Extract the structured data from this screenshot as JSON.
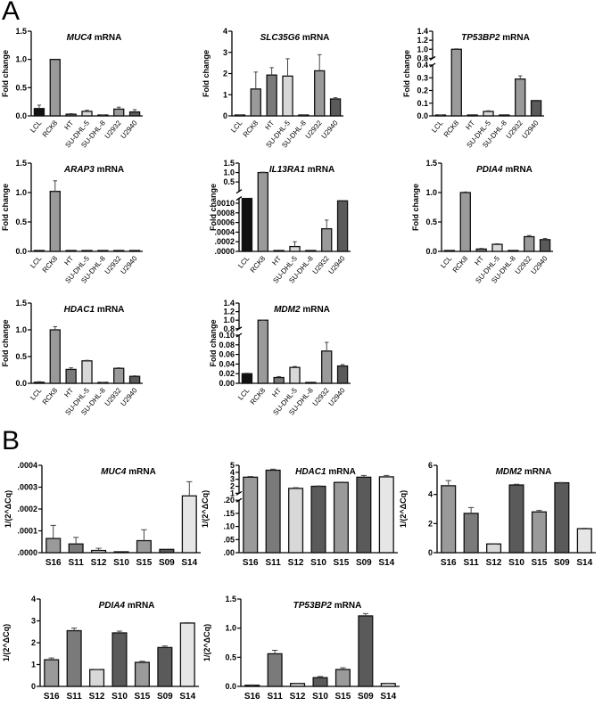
{
  "panels": [
    {
      "label": "A"
    },
    {
      "label": "B"
    }
  ],
  "chart_data": [
    {
      "type": "bar",
      "panel": "A",
      "title_gene": "MUC4",
      "title_suffix": " mRNA",
      "ylabel": "Fold change",
      "categories": [
        "LCL",
        "RCK8",
        "HT",
        "SU-DHL-5",
        "SU-DHL-8",
        "U2932",
        "U2940"
      ],
      "values": [
        0.13,
        1.0,
        0.03,
        0.08,
        0.01,
        0.12,
        0.07
      ],
      "errors": [
        0.06,
        0.0,
        0.01,
        0.02,
        0.005,
        0.035,
        0.04
      ],
      "colors": [
        "#111111",
        "#9a9a9a",
        "#7a7a7a",
        "#d8d8d8",
        "#5a5a5a",
        "#9a9a9a",
        "#5a5a5a"
      ],
      "y_segments": [
        {
          "min": 0,
          "max": 1.5,
          "ticks": [
            {
              "v": 0,
              "t": "0.0"
            },
            {
              "v": 0.5,
              "t": "0.5"
            },
            {
              "v": 1,
              "t": "1.0"
            },
            {
              "v": 1.5,
              "t": "1.5"
            }
          ]
        }
      ]
    },
    {
      "type": "bar",
      "panel": "A",
      "title_gene": "SLC35G6",
      "title_suffix": " mRNA",
      "ylabel": "Fold change",
      "categories": [
        "LCL",
        "RCK8",
        "HT",
        "SU-DHL-5",
        "SU-DHL-8",
        "U2932",
        "U2940"
      ],
      "values": [
        0.03,
        1.27,
        1.93,
        1.88,
        0.03,
        2.13,
        0.8
      ],
      "errors": [
        0.02,
        0.8,
        0.35,
        0.82,
        0.02,
        0.76,
        0.06
      ],
      "colors": [
        "#111111",
        "#9a9a9a",
        "#7a7a7a",
        "#d8d8d8",
        "#5a5a5a",
        "#9a9a9a",
        "#5a5a5a"
      ],
      "y_segments": [
        {
          "min": 0,
          "max": 4,
          "ticks": [
            {
              "v": 0,
              "t": "0"
            },
            {
              "v": 1,
              "t": "1"
            },
            {
              "v": 2,
              "t": "2"
            },
            {
              "v": 3,
              "t": "3"
            },
            {
              "v": 4,
              "t": "4"
            }
          ]
        }
      ]
    },
    {
      "type": "bar",
      "panel": "A",
      "title_gene": "TP53BP2",
      "title_suffix": " mRNA",
      "ylabel": "Fold change",
      "categories": [
        "LCL",
        "RCK8",
        "HT",
        "SU-DHL-5",
        "SU-DHL-8",
        "U2932",
        "U2940"
      ],
      "values": [
        0.005,
        1.0,
        0.002,
        0.035,
        0.003,
        0.29,
        0.12
      ],
      "errors": [
        0.002,
        0.01,
        0.0,
        0.005,
        0.0,
        0.025,
        0.003
      ],
      "colors": [
        "#111111",
        "#9a9a9a",
        "#7a7a7a",
        "#d8d8d8",
        "#5a5a5a",
        "#9a9a9a",
        "#5a5a5a"
      ],
      "y_segments": [
        {
          "min": 0,
          "max": 0.4,
          "ticks": [
            {
              "v": 0,
              "t": "0.0"
            },
            {
              "v": 0.1,
              "t": "0.1"
            },
            {
              "v": 0.2,
              "t": "0.2"
            },
            {
              "v": 0.3,
              "t": "0.3"
            },
            {
              "v": 0.4,
              "t": "0.4"
            }
          ]
        },
        {
          "min": 0.8,
          "max": 1.4,
          "ticks": [
            {
              "v": 0.8,
              "t": "0.8"
            },
            {
              "v": 1.0,
              "t": "1.0"
            },
            {
              "v": 1.2,
              "t": "1.2"
            },
            {
              "v": 1.4,
              "t": "1.4"
            }
          ]
        }
      ]
    },
    {
      "type": "bar",
      "panel": "A",
      "title_gene": "ARAP3",
      "title_suffix": " mRNA",
      "ylabel": "Fold change",
      "categories": [
        "LCL",
        "RCK8",
        "HT",
        "SU-DHL-5",
        "SU-DHL-8",
        "U2932",
        "U2940"
      ],
      "values": [
        0.0,
        1.02,
        0.0,
        0.0,
        0.0,
        0.0,
        0.0
      ],
      "errors": [
        0,
        0.18,
        0,
        0,
        0,
        0,
        0
      ],
      "colors": [
        "#111111",
        "#9a9a9a",
        "#7a7a7a",
        "#d8d8d8",
        "#5a5a5a",
        "#9a9a9a",
        "#5a5a5a"
      ],
      "y_segments": [
        {
          "min": 0,
          "max": 1.5,
          "ticks": [
            {
              "v": 0,
              "t": "0.0"
            },
            {
              "v": 0.5,
              "t": "0.5"
            },
            {
              "v": 1,
              "t": "1.0"
            },
            {
              "v": 1.5,
              "t": "1.5"
            }
          ]
        }
      ]
    },
    {
      "type": "bar",
      "panel": "A",
      "title_gene": "IL13RA1",
      "title_suffix": " mRNA",
      "ylabel": "Fold change",
      "categories": [
        "LCL",
        "RCK8",
        "HT",
        "SU-DHL-5",
        "SU-DHL-8",
        "U2932",
        "U2940"
      ],
      "values": [
        0.0011,
        1.0,
        0.0,
        0.0001,
        0.0,
        0.00047,
        0.00105
      ],
      "errors": [
        0,
        0.02,
        0,
        0.0001,
        0,
        0.00018,
        0
      ],
      "colors": [
        "#111111",
        "#9a9a9a",
        "#7a7a7a",
        "#d8d8d8",
        "#5a5a5a",
        "#9a9a9a",
        "#5a5a5a"
      ],
      "y_segments": [
        {
          "min": 0,
          "max": 0.0011,
          "ticks": [
            {
              "v": 0,
              "t": ".0000"
            },
            {
              "v": 0.0002,
              "t": ".0002"
            },
            {
              "v": 0.0004,
              "t": ".0004"
            },
            {
              "v": 0.0006,
              "t": ".0006"
            },
            {
              "v": 0.0008,
              "t": ".0008"
            },
            {
              "v": 0.001,
              "t": ".0010"
            }
          ]
        },
        {
          "min": 0.0,
          "max": 1.5,
          "ticks": [
            {
              "v": 0.5,
              "t": "0.5"
            },
            {
              "v": 1.0,
              "t": "1.0"
            },
            {
              "v": 1.5,
              "t": "1.5"
            }
          ]
        }
      ]
    },
    {
      "type": "bar",
      "panel": "A",
      "title_gene": "PDIA4",
      "title_suffix": " mRNA",
      "ylabel": "Fold change",
      "categories": [
        "LCL",
        "RCK8",
        "HT",
        "SU-DHL-5",
        "SU-DHL-8",
        "U2932",
        "U2940"
      ],
      "values": [
        0.005,
        1.0,
        0.04,
        0.12,
        0.005,
        0.25,
        0.2
      ],
      "errors": [
        0,
        0.01,
        0.01,
        0.01,
        0,
        0.02,
        0.02
      ],
      "colors": [
        "#111111",
        "#9a9a9a",
        "#7a7a7a",
        "#d8d8d8",
        "#5a5a5a",
        "#9a9a9a",
        "#5a5a5a"
      ],
      "y_segments": [
        {
          "min": 0,
          "max": 1.5,
          "ticks": [
            {
              "v": 0,
              "t": "0.0"
            },
            {
              "v": 0.5,
              "t": "0.5"
            },
            {
              "v": 1,
              "t": "1.0"
            },
            {
              "v": 1.5,
              "t": "1.5"
            }
          ]
        }
      ]
    },
    {
      "type": "bar",
      "panel": "A",
      "title_gene": "HDAC1",
      "title_suffix": " mRNA",
      "ylabel": "Fold change",
      "categories": [
        "LCL",
        "RCK8",
        "HT",
        "SU-DHL-5",
        "SU-DHL-8",
        "U2932",
        "U2940"
      ],
      "values": [
        0.02,
        1.0,
        0.26,
        0.42,
        0.01,
        0.28,
        0.13
      ],
      "errors": [
        0.01,
        0.06,
        0.03,
        0.01,
        0.005,
        0.01,
        0.01
      ],
      "colors": [
        "#111111",
        "#9a9a9a",
        "#7a7a7a",
        "#d8d8d8",
        "#5a5a5a",
        "#9a9a9a",
        "#5a5a5a"
      ],
      "y_segments": [
        {
          "min": 0,
          "max": 1.5,
          "ticks": [
            {
              "v": 0,
              "t": "0.0"
            },
            {
              "v": 0.5,
              "t": "0.5"
            },
            {
              "v": 1,
              "t": "1.0"
            },
            {
              "v": 1.5,
              "t": "1.5"
            }
          ]
        }
      ]
    },
    {
      "type": "bar",
      "panel": "A",
      "title_gene": "MDM2",
      "title_suffix": " mRNA",
      "ylabel": "Fold change",
      "categories": [
        "LCL",
        "RCK8",
        "HT",
        "SU-DHL-5",
        "SU-DHL-8",
        "U2932",
        "U2940"
      ],
      "values": [
        0.02,
        1.0,
        0.012,
        0.033,
        0.001,
        0.067,
        0.036
      ],
      "errors": [
        0.001,
        0.005,
        0.002,
        0.002,
        0,
        0.018,
        0.003
      ],
      "colors": [
        "#111111",
        "#9a9a9a",
        "#7a7a7a",
        "#d8d8d8",
        "#5a5a5a",
        "#9a9a9a",
        "#5a5a5a"
      ],
      "y_segments": [
        {
          "min": 0,
          "max": 0.1,
          "ticks": [
            {
              "v": 0,
              "t": "0.00"
            },
            {
              "v": 0.02,
              "t": "0.02"
            },
            {
              "v": 0.04,
              "t": "0.04"
            },
            {
              "v": 0.06,
              "t": "0.06"
            },
            {
              "v": 0.08,
              "t": "0.08"
            },
            {
              "v": 0.1,
              "t": "0.10"
            }
          ]
        },
        {
          "min": 0.8,
          "max": 1.4,
          "ticks": [
            {
              "v": 0.8,
              "t": "0.8"
            },
            {
              "v": 1.0,
              "t": "1.0"
            },
            {
              "v": 1.2,
              "t": "1.2"
            },
            {
              "v": 1.4,
              "t": "1.4"
            }
          ]
        }
      ]
    },
    {
      "type": "bar",
      "panel": "B",
      "title_gene": "MUC4",
      "title_suffix": " mRNA",
      "ylabel": "1/(2^ΔCq)",
      "categories": [
        "S16",
        "S11",
        "S12",
        "S10",
        "S15",
        "S09",
        "S14"
      ],
      "values": [
        6.5e-05,
        4e-05,
        1e-05,
        3e-06,
        5.5e-05,
        1.5e-05,
        0.00026
      ],
      "errors": [
        6e-05,
        3e-05,
        1e-05,
        0,
        5e-05,
        0,
        6.5e-05
      ],
      "colors": [
        "#9a9a9a",
        "#7a7a7a",
        "#d8d8d8",
        "#5a5a5a",
        "#9a9a9a",
        "#5a5a5a",
        "#e6e6e6"
      ],
      "y_segments": [
        {
          "min": 0,
          "max": 0.0004,
          "ticks": [
            {
              "v": 0,
              "t": ".0000"
            },
            {
              "v": 0.0001,
              "t": ".0001"
            },
            {
              "v": 0.0002,
              "t": ".0002"
            },
            {
              "v": 0.0003,
              "t": ".0003"
            },
            {
              "v": 0.0004,
              "t": ".0004"
            }
          ]
        }
      ]
    },
    {
      "type": "bar",
      "panel": "B",
      "title_gene": "HDAC1",
      "title_suffix": " mRNA",
      "ylabel": "1/(2^ΔCq)",
      "categories": [
        "S16",
        "S11",
        "S12",
        "S10",
        "S15",
        "S09",
        "S14"
      ],
      "values": [
        3.3,
        4.3,
        1.7,
        2.0,
        2.55,
        3.3,
        3.35
      ],
      "errors": [
        0.1,
        0.15,
        0.1,
        0.05,
        0.05,
        0.25,
        0.2
      ],
      "colors": [
        "#9a9a9a",
        "#7a7a7a",
        "#d8d8d8",
        "#5a5a5a",
        "#9a9a9a",
        "#5a5a5a",
        "#e6e6e6"
      ],
      "y_segments": [
        {
          "min": 0,
          "max": 0.2,
          "ticks": [
            {
              "v": 0,
              "t": ".00"
            },
            {
              "v": 0.05,
              "t": ".05"
            },
            {
              "v": 0.1,
              "t": ".10"
            },
            {
              "v": 0.15,
              "t": ".15"
            },
            {
              "v": 0.2,
              "t": ".20"
            }
          ]
        },
        {
          "min": 1,
          "max": 5,
          "ticks": [
            {
              "v": 1,
              "t": "1"
            },
            {
              "v": 2,
              "t": "2"
            },
            {
              "v": 3,
              "t": "3"
            },
            {
              "v": 4,
              "t": "4"
            },
            {
              "v": 5,
              "t": "5"
            }
          ]
        }
      ]
    },
    {
      "type": "bar",
      "panel": "B",
      "title_gene": "MDM2",
      "title_suffix": " mRNA",
      "ylabel": "1/(2^ΔCq)",
      "categories": [
        "S16",
        "S11",
        "S12",
        "S10",
        "S15",
        "S09",
        "S14"
      ],
      "values": [
        4.6,
        2.7,
        0.6,
        4.65,
        2.8,
        4.8,
        1.65
      ],
      "errors": [
        0.35,
        0.4,
        0.02,
        0.05,
        0.1,
        0.02,
        0.03
      ],
      "colors": [
        "#9a9a9a",
        "#7a7a7a",
        "#d8d8d8",
        "#5a5a5a",
        "#9a9a9a",
        "#5a5a5a",
        "#e6e6e6"
      ],
      "y_segments": [
        {
          "min": 0,
          "max": 6,
          "ticks": [
            {
              "v": 0,
              "t": "0"
            },
            {
              "v": 2,
              "t": "2"
            },
            {
              "v": 4,
              "t": "4"
            },
            {
              "v": 6,
              "t": "6"
            }
          ]
        }
      ]
    },
    {
      "type": "bar",
      "panel": "B",
      "title_gene": "PDIA4",
      "title_suffix": " mRNA",
      "ylabel": "1/(2^ΔCq)",
      "categories": [
        "S16",
        "S11",
        "S12",
        "S10",
        "S15",
        "S09",
        "S14"
      ],
      "values": [
        1.22,
        2.55,
        0.77,
        2.45,
        1.1,
        1.78,
        2.9
      ],
      "errors": [
        0.08,
        0.12,
        0.01,
        0.08,
        0.05,
        0.07,
        0.02
      ],
      "colors": [
        "#9a9a9a",
        "#7a7a7a",
        "#d8d8d8",
        "#5a5a5a",
        "#9a9a9a",
        "#5a5a5a",
        "#e6e6e6"
      ],
      "y_segments": [
        {
          "min": 0,
          "max": 4,
          "ticks": [
            {
              "v": 0,
              "t": "0"
            },
            {
              "v": 1,
              "t": "1"
            },
            {
              "v": 2,
              "t": "2"
            },
            {
              "v": 3,
              "t": "3"
            },
            {
              "v": 4,
              "t": "4"
            }
          ]
        }
      ]
    },
    {
      "type": "bar",
      "panel": "B",
      "title_gene": "TP53BP2",
      "title_suffix": " mRNA",
      "ylabel": "1/(2^ΔCq)",
      "categories": [
        "S16",
        "S11",
        "S12",
        "S10",
        "S15",
        "S09",
        "S14"
      ],
      "values": [
        0.02,
        0.56,
        0.05,
        0.15,
        0.29,
        1.21,
        0.05
      ],
      "errors": [
        0.005,
        0.06,
        0.005,
        0.02,
        0.03,
        0.04,
        0.005
      ],
      "colors": [
        "#9a9a9a",
        "#7a7a7a",
        "#d8d8d8",
        "#5a5a5a",
        "#9a9a9a",
        "#5a5a5a",
        "#e6e6e6"
      ],
      "y_segments": [
        {
          "min": 0,
          "max": 1.5,
          "ticks": [
            {
              "v": 0,
              "t": "0.0"
            },
            {
              "v": 0.5,
              "t": "0.5"
            },
            {
              "v": 1,
              "t": "1.0"
            },
            {
              "v": 1.5,
              "t": "1.5"
            }
          ]
        }
      ]
    }
  ]
}
